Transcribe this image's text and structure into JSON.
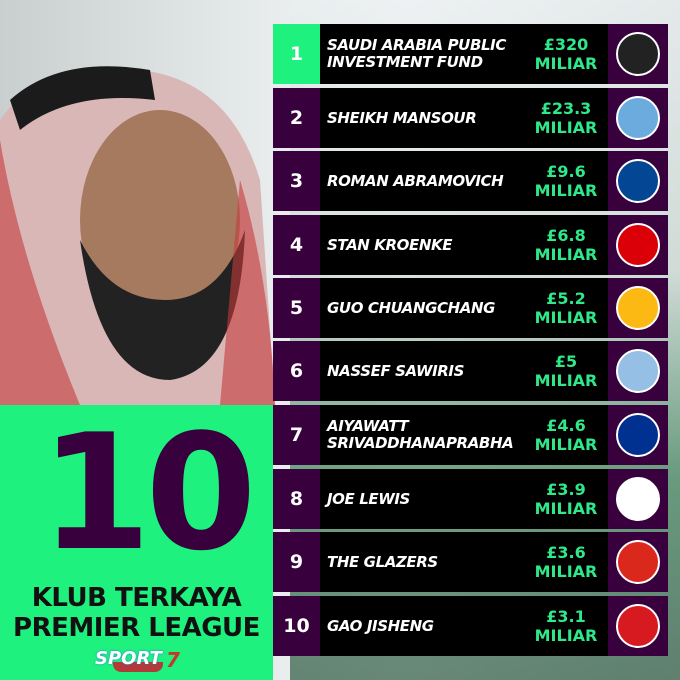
{
  "headline": {
    "number": "10",
    "line1": "KLUB TERKAYA",
    "line2": "PREMIER LEAGUE"
  },
  "brand": {
    "logo_text": "SPORT",
    "logo_num": "7"
  },
  "colors": {
    "green": "#1ff17f",
    "purple": "#38003c",
    "value_green": "#2fe889"
  },
  "rows": [
    {
      "rank": "1",
      "owner": "SAUDI ARABIA PUBLIC INVESTMENT FUND",
      "value": "£320",
      "unit": "MILIAR",
      "club_icon": "newcastle-crest",
      "crest_color": "#222"
    },
    {
      "rank": "2",
      "owner": "SHEIKH MANSOUR",
      "value": "£23.3",
      "unit": "MILIAR",
      "club_icon": "man-city-crest",
      "crest_color": "#6cabdd"
    },
    {
      "rank": "3",
      "owner": "ROMAN ABRAMOVICH",
      "value": "£9.6",
      "unit": "MILIAR",
      "club_icon": "chelsea-crest",
      "crest_color": "#034694"
    },
    {
      "rank": "4",
      "owner": "STAN KROENKE",
      "value": "£6.8",
      "unit": "MILIAR",
      "club_icon": "arsenal-crest",
      "crest_color": "#db0007"
    },
    {
      "rank": "5",
      "owner": "GUO CHUANGCHANG",
      "value": "£5.2",
      "unit": "MILIAR",
      "club_icon": "wolves-crest",
      "crest_color": "#fdb913"
    },
    {
      "rank": "6",
      "owner": "NASSEF SAWIRIS",
      "value": "£5",
      "unit": "MILIAR",
      "club_icon": "aston-villa-crest",
      "crest_color": "#95bfe5"
    },
    {
      "rank": "7",
      "owner": "AIYAWATT SRIVADDHANAPRABHA",
      "value": "£4.6",
      "unit": "MILIAR",
      "club_icon": "leicester-crest",
      "crest_color": "#003090"
    },
    {
      "rank": "8",
      "owner": "JOE LEWIS",
      "value": "£3.9",
      "unit": "MILIAR",
      "club_icon": "tottenham-crest",
      "crest_color": "#ffffff"
    },
    {
      "rank": "9",
      "owner": "THE GLAZERS",
      "value": "£3.6",
      "unit": "MILIAR",
      "club_icon": "man-united-crest",
      "crest_color": "#da291c"
    },
    {
      "rank": "10",
      "owner": "GAO JISHENG",
      "value": "£3.1",
      "unit": "MILIAR",
      "club_icon": "southampton-crest",
      "crest_color": "#d71920"
    }
  ]
}
